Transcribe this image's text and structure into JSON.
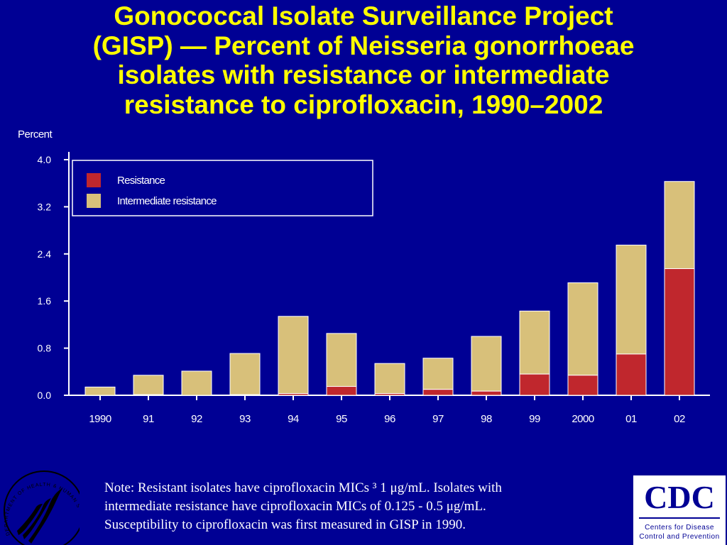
{
  "title_lines": [
    "Gonococcal Isolate Surveillance Project",
    "(GISP) — Percent of Neisseria gonorrhoeae",
    "isolates with resistance or intermediate",
    "resistance to ciprofloxacin, 1990–2002"
  ],
  "chart_data": {
    "type": "bar",
    "stacked": true,
    "title": "Gonococcal Isolate Surveillance Project (GISP) — Percent of Neisseria gonorrhoeae isolates with resistance or intermediate resistance to ciprofloxacin, 1990–2002",
    "xlabel": "",
    "ylabel": "Percent",
    "ylim": [
      0,
      4.0
    ],
    "yticks": [
      "0.0",
      "0.8",
      "1.6",
      "2.4",
      "3.2",
      "4.0"
    ],
    "categories": [
      "1990",
      "91",
      "92",
      "93",
      "94",
      "95",
      "96",
      "97",
      "98",
      "99",
      "2000",
      "01",
      "02"
    ],
    "series": [
      {
        "name": "Resistance",
        "color": "#c0272d",
        "values": [
          0.0,
          0.01,
          0.0,
          0.01,
          0.03,
          0.15,
          0.03,
          0.1,
          0.07,
          0.36,
          0.34,
          0.7,
          2.15
        ]
      },
      {
        "name": "Intermediate resistance",
        "color": "#d8c07a",
        "values": [
          0.14,
          0.33,
          0.41,
          0.7,
          1.31,
          0.9,
          0.51,
          0.53,
          0.93,
          1.07,
          1.57,
          1.85,
          1.48
        ]
      }
    ],
    "legend_position": "top-left",
    "grid": false
  },
  "note_lines": [
    "Note: Resistant isolates have ciprofloxacin MICs ³ 1 μg/mL. Isolates with",
    "intermediate resistance have ciprofloxacin MICs of 0.125 - 0.5 μg/mL.",
    "Susceptibility to ciprofloxacin was first measured in GISP in 1990."
  ],
  "cdc_logo": {
    "text": "CDC",
    "subtitle_lines": [
      "Centers for Disease",
      "Control and Prevention"
    ]
  },
  "hhs_seal": {
    "icon": "hhs-eagle-seal-icon",
    "text": "DEPARTMENT OF HEALTH & HUMAN SERVICES · USA"
  },
  "colors": {
    "background": "#000094",
    "title": "#ffff00",
    "axis": "#ffffff",
    "resistance": "#c0272d",
    "intermediate": "#d8c07a"
  }
}
